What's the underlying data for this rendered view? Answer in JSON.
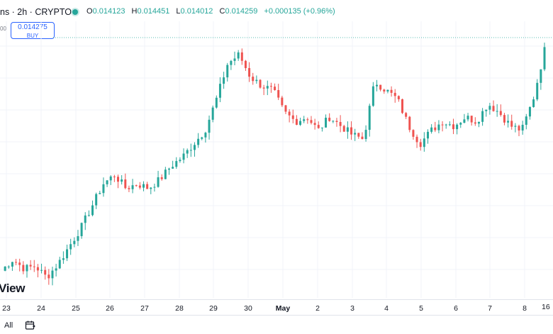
{
  "header": {
    "symbol": "ns · 2h · CRYPTO",
    "ohlc": [
      {
        "key": "O",
        "value": "0.014123"
      },
      {
        "key": "H",
        "value": "0.014451"
      },
      {
        "key": "L",
        "value": "0.014012"
      },
      {
        "key": "C",
        "value": "0.014259"
      }
    ],
    "change": "+0.000135 (+0.96%)"
  },
  "buy_box": {
    "price": "0.014275",
    "label": "BUY"
  },
  "left_stub": "00",
  "watermark": "View",
  "colors": {
    "up": "#26a69a",
    "down": "#ef5350",
    "accent": "#2962ff",
    "grid": "#f0f3fa"
  },
  "footer": {
    "range_label": "All",
    "calendar_icon": "calendar-icon",
    "right_time": "16"
  },
  "chart_data": {
    "type": "candlestick",
    "x_ticks": [
      "23",
      "24",
      "25",
      "26",
      "27",
      "28",
      "29",
      "30",
      "May",
      "2",
      "3",
      "4",
      "5",
      "6",
      "7",
      "8"
    ],
    "last_price_line": "dotted",
    "trend_closes": [
      0.00925,
      0.0095,
      0.0093,
      0.00935,
      0.0091,
      0.0094,
      0.0098,
      0.0102,
      0.0107,
      0.0112,
      0.0114,
      0.0111,
      0.0112,
      0.0111,
      0.0113,
      0.0116,
      0.0118,
      0.0121,
      0.0124,
      0.0131,
      0.0139,
      0.0141,
      0.0136,
      0.0134,
      0.0133,
      0.0128,
      0.0126,
      0.0127,
      0.0124,
      0.0127,
      0.0125,
      0.0123,
      0.0122,
      0.0135,
      0.0133,
      0.0131,
      0.0125,
      0.0121,
      0.0124,
      0.0126,
      0.0125,
      0.0127,
      0.0126,
      0.013,
      0.0128,
      0.0125,
      0.0124,
      0.0131,
      0.0142
    ]
  }
}
